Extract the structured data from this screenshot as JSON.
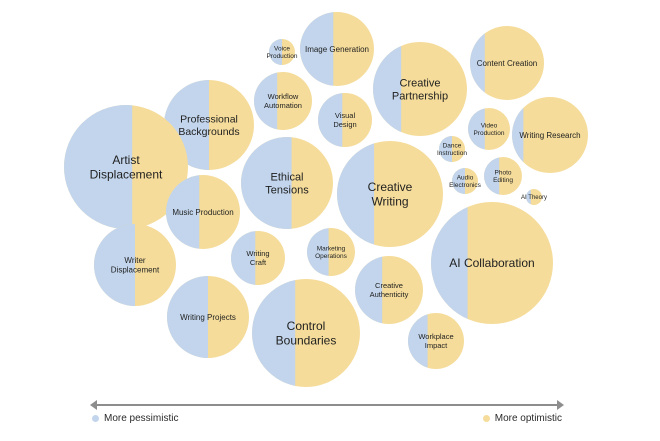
{
  "colors": {
    "pessimistic": "#c2d5ec",
    "optimistic": "#f5dc9a",
    "axis": "#8d8d8d",
    "text": "#1f1f1f"
  },
  "legend": {
    "left_label": "More pessimistic",
    "right_label": "More optimistic"
  },
  "chart_data": {
    "type": "bubble",
    "description_axis": "share of pessimistic (left, blue) vs optimistic (right, yellow) sentiment",
    "bubbles": [
      {
        "label": "Voice Production",
        "pessimistic_share": 0.5
      },
      {
        "label": "Image Generation",
        "pessimistic_share": 0.45
      },
      {
        "label": "Creative Partnership",
        "pessimistic_share": 0.3
      },
      {
        "label": "Content Creation",
        "pessimistic_share": 0.2
      },
      {
        "label": "Professional Backgrounds",
        "pessimistic_share": 0.5
      },
      {
        "label": "Workflow Automation",
        "pessimistic_share": 0.4
      },
      {
        "label": "Visual Design",
        "pessimistic_share": 0.45
      },
      {
        "label": "Video Production",
        "pessimistic_share": 0.4
      },
      {
        "label": "Writing Research",
        "pessimistic_share": 0.15
      },
      {
        "label": "Artist Displacement",
        "pessimistic_share": 0.55
      },
      {
        "label": "Ethical Tensions",
        "pessimistic_share": 0.55
      },
      {
        "label": "Creative Writing",
        "pessimistic_share": 0.35
      },
      {
        "label": "Dance Instruction",
        "pessimistic_share": 0.5
      },
      {
        "label": "Audio Electronics",
        "pessimistic_share": 0.5
      },
      {
        "label": "Photo Editing",
        "pessimistic_share": 0.4
      },
      {
        "label": "AI Theory",
        "pessimistic_share": 0.3
      },
      {
        "label": "Music Production",
        "pessimistic_share": 0.45
      },
      {
        "label": "Writer Displacement",
        "pessimistic_share": 0.5
      },
      {
        "label": "Writing Craft",
        "pessimistic_share": 0.45
      },
      {
        "label": "Marketing Operations",
        "pessimistic_share": 0.45
      },
      {
        "label": "AI Collaboration",
        "pessimistic_share": 0.3
      },
      {
        "label": "Creative Authenticity",
        "pessimistic_share": 0.4
      },
      {
        "label": "Writing Projects",
        "pessimistic_share": 0.5
      },
      {
        "label": "Control Boundaries",
        "pessimistic_share": 0.4
      },
      {
        "label": "Workplace Impact",
        "pessimistic_share": 0.35
      }
    ]
  }
}
